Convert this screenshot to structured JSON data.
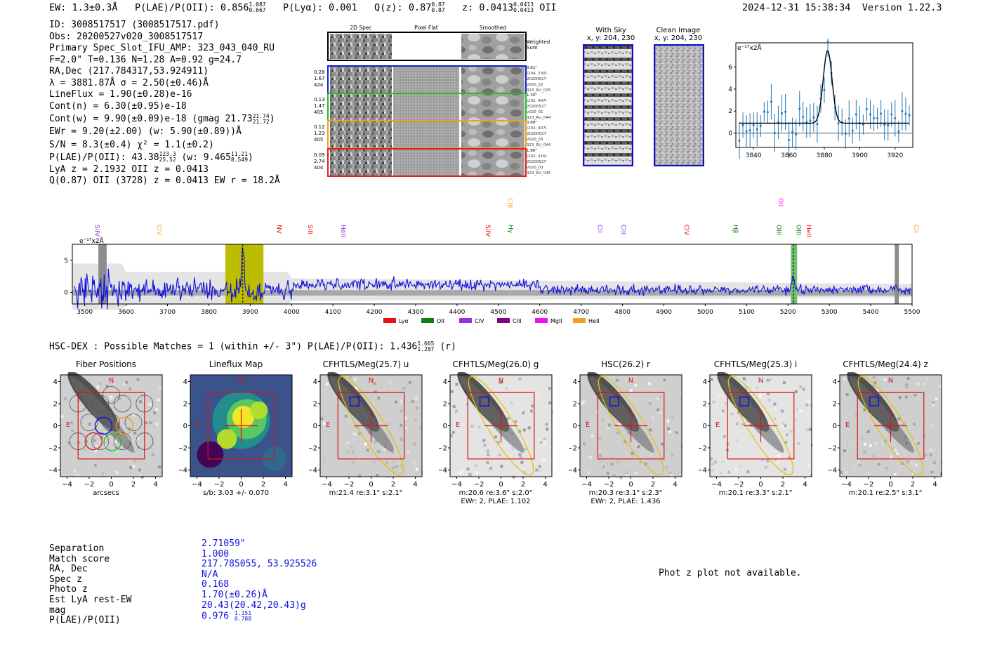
{
  "header": {
    "ew": "EW: 1.3±0.3Å",
    "plae_label": "P(LAE)/P(OII): 0.856",
    "plae_hi": "1.087",
    "plae_lo": "0.667",
    "plya": "P(Lyα): 0.001",
    "qz_label": "Q(z): 0.87",
    "qz_hi": "0.87",
    "qz_lo": "0.87",
    "z_label": "z: 0.0413",
    "z_hi": "0.0413",
    "z_lo": "0.0413",
    "z_line": "OII",
    "timestamp": "2024-12-31 15:38:34",
    "version": "Version 1.22.3"
  },
  "info": {
    "id": "ID: 3008517517 (3008517517.pdf)",
    "obs": "Obs: 20200527v020_3008517517",
    "primary": "Primary Spec_Slot_IFU_AMP: 323_043_040_RU",
    "params": "F=2.0\"  T=0.136  N=1.28  A=0.92  g=24.7",
    "radec": "RA,Dec (217.784317,53.924911)",
    "lambda": "λ = 3881.87Å  σ = 2.50(±0.46)Å",
    "lineflux": "LineFlux = 1.90(±0.28)e-16",
    "contn": "Cont(n) = 6.30(±0.95)e-18",
    "contw_label": "Cont(w) = 9.90(±0.09)e-18 (gmag 21.73",
    "contw_hi": "21.74",
    "contw_lo": "21.72",
    "ewr": "EWr = 9.20(±2.00) (w: 5.90(±0.89))Å",
    "sn": "S/N = 8.3(±0.4)  χ² = 1.1(±0.2)",
    "plae_label": "P(LAE)/P(OII): 43.38",
    "plae_hi": "123.3",
    "plae_lo": "25.52",
    "plae_w": "(w: 9.465",
    "plae_w_hi": "11.21",
    "plae_w_lo": "8.549",
    "lya": "LyA z = 2.1932  OII z = 0.0413",
    "q": "Q(0.87) OII (3728) z = 0.0413  EW r = 18.2Å"
  },
  "fiber_panel": {
    "col_titles": [
      "2D Spec",
      "Pixel Flat",
      "Smoothed"
    ],
    "weighted_sum": "Weighted Sum",
    "rows": [
      {
        "left": [
          "0.28",
          "1.67",
          "424"
        ],
        "right": [
          "0.61\"",
          "(204, 230)",
          "20200527",
          "v020_02",
          "323_RU_025"
        ],
        "color": "#1020d0"
      },
      {
        "left": [
          "0.13",
          "1.47",
          "405"
        ],
        "right": [
          "1.30\"",
          "(202, 407)",
          "20200527",
          "v020_01",
          "323_RU_044"
        ],
        "color": "#20c020"
      },
      {
        "left": [
          "0.12",
          "1.23",
          "405"
        ],
        "right": [
          "0.88\"",
          "(202, 407)",
          "20200527",
          "v020_03",
          "323_RU_044"
        ],
        "color": "#f0a020"
      },
      {
        "left": [
          "0.09",
          "2.74",
          "404"
        ],
        "right": [
          "1.86\"",
          "(202, 416)",
          "20200527",
          "v020_03",
          "323_RU_045"
        ],
        "color": "#e02020"
      }
    ]
  },
  "sky_panels": {
    "with_sky": "With Sky",
    "with_sky_xy": "x, y: 204, 230",
    "clean": "Clean Image",
    "clean_xy": "x, y: 204, 230"
  },
  "zoom_chart": {
    "unit": "e⁻¹⁷x2Å",
    "xticks": [
      "3840",
      "3860",
      "3880",
      "3900",
      "3920"
    ],
    "yticks": [
      "0",
      "2",
      "4",
      "6"
    ]
  },
  "full_spectrum": {
    "unit": "e⁻¹⁷x2Å",
    "yticks": [
      "0",
      "5"
    ],
    "xticks": [
      "3500",
      "3600",
      "3700",
      "3800",
      "3900",
      "4000",
      "4100",
      "4200",
      "4300",
      "4400",
      "4500",
      "4600",
      "4700",
      "4800",
      "4900",
      "5000",
      "5100",
      "5200",
      "5300",
      "5400",
      "5500"
    ],
    "legend": [
      {
        "label": "Lyα",
        "color": "#e81010"
      },
      {
        "label": "OII",
        "color": "#108010"
      },
      {
        "label": "CIV",
        "color": "#9030e0"
      },
      {
        "label": "CIII",
        "color": "#800080"
      },
      {
        "label": "MgII",
        "color": "#f010f0"
      },
      {
        "label": "HeII",
        "color": "#f0a020"
      }
    ],
    "lines": [
      {
        "label": "SiIV",
        "wave": 3520,
        "color": "#9030e0",
        "up": false
      },
      {
        "label": "CIV",
        "wave": 3670,
        "color": "#f0a020",
        "up": false
      },
      {
        "label": "NV",
        "wave": 3960,
        "color": "#e81010",
        "up": false
      },
      {
        "label": "SiII",
        "wave": 4035,
        "color": "#e81010",
        "up": false
      },
      {
        "label": "HeII",
        "wave": 4115,
        "color": "#9030e0",
        "up": false
      },
      {
        "label": "SiIV",
        "wave": 4465,
        "color": "#e81010",
        "up": false
      },
      {
        "label": "CIII",
        "wave": 4518,
        "color": "#f0a020",
        "up": true
      },
      {
        "label": "Hγ",
        "wave": 4520,
        "color": "#108010",
        "up": false
      },
      {
        "label": "CII",
        "wave": 4735,
        "color": "#9030e0",
        "up": false
      },
      {
        "label": "CIII",
        "wave": 4792,
        "color": "#9030e0",
        "up": false
      },
      {
        "label": "CIV",
        "wave": 4945,
        "color": "#e81010",
        "up": false
      },
      {
        "label": "Hβ",
        "wave": 5063,
        "color": "#108010",
        "up": false
      },
      {
        "label": "OII",
        "wave": 5172,
        "color": "#f010f0",
        "up": true
      },
      {
        "label": "OIII",
        "wave": 5168,
        "color": "#108010",
        "up": false
      },
      {
        "label": "OIII",
        "wave": 5216,
        "color": "#108010",
        "up": false
      },
      {
        "label": "HeII",
        "wave": 5240,
        "color": "#e81010",
        "up": false
      },
      {
        "label": "CII",
        "wave": 5500,
        "color": "#f0a020",
        "up": false
      }
    ]
  },
  "hsc": {
    "title_label": "HSC-DEX : Possible Matches = 1 (within +/- 3\")  P(LAE)/P(OII): 1.436",
    "title_hi": "1.665",
    "title_lo": "1.287",
    "title_band": "(r)"
  },
  "cutouts": [
    {
      "title": "Fiber Positions",
      "cap1": "arcsecs",
      "cap2": ""
    },
    {
      "title": "Lineflux Map",
      "cap1": "s/b: 3.03 +/- 0.070",
      "cap2": ""
    },
    {
      "title": "CFHTLS/Meg(25.7) u",
      "cap1": "m:21.4  re:3.1\"  s:2.1\"",
      "cap2": ""
    },
    {
      "title": "CFHTLS/Meg(26.0) g",
      "cap1": "m:20.6  re:3.6\"  s:2.0\"",
      "cap2": "EWr: 2, PLAE: 1.102"
    },
    {
      "title": "HSC(26.2) r",
      "cap1": "m:20.3  re:3.1\"  s:2.3\"",
      "cap2": "EWr: 2, PLAE: 1.436"
    },
    {
      "title": "CFHTLS/Meg(25.3) i",
      "cap1": "m:20.1  re:3.3\"  s:2.1\"",
      "cap2": ""
    },
    {
      "title": "CFHTLS/Meg(24.4) z",
      "cap1": "m:20.1  re:2.5\"  s:3.1\"",
      "cap2": ""
    }
  ],
  "cutout_axis": {
    "ticks": [
      "4",
      "2",
      "0",
      "−2",
      "−4"
    ],
    "xticks": [
      "−4",
      "−2",
      "0",
      "2",
      "4"
    ],
    "north": "N",
    "east": "E"
  },
  "match_table": {
    "labels": [
      "Separation",
      "Match score",
      "RA, Dec",
      "Spec z",
      "Photo z",
      "Est LyA rest-EW",
      "mag",
      "P(LAE)/P(OII)"
    ],
    "values": [
      "2.71059\"",
      "1.000",
      "217.785055, 53.925526",
      "N/A",
      "0.168",
      "1.70(±0.26)Å",
      "20.43(20.42,20.43)g",
      "0.976"
    ],
    "plae_hi": "1.151",
    "plae_lo": "0.788"
  },
  "photz_note": "Phot z plot not available."
}
